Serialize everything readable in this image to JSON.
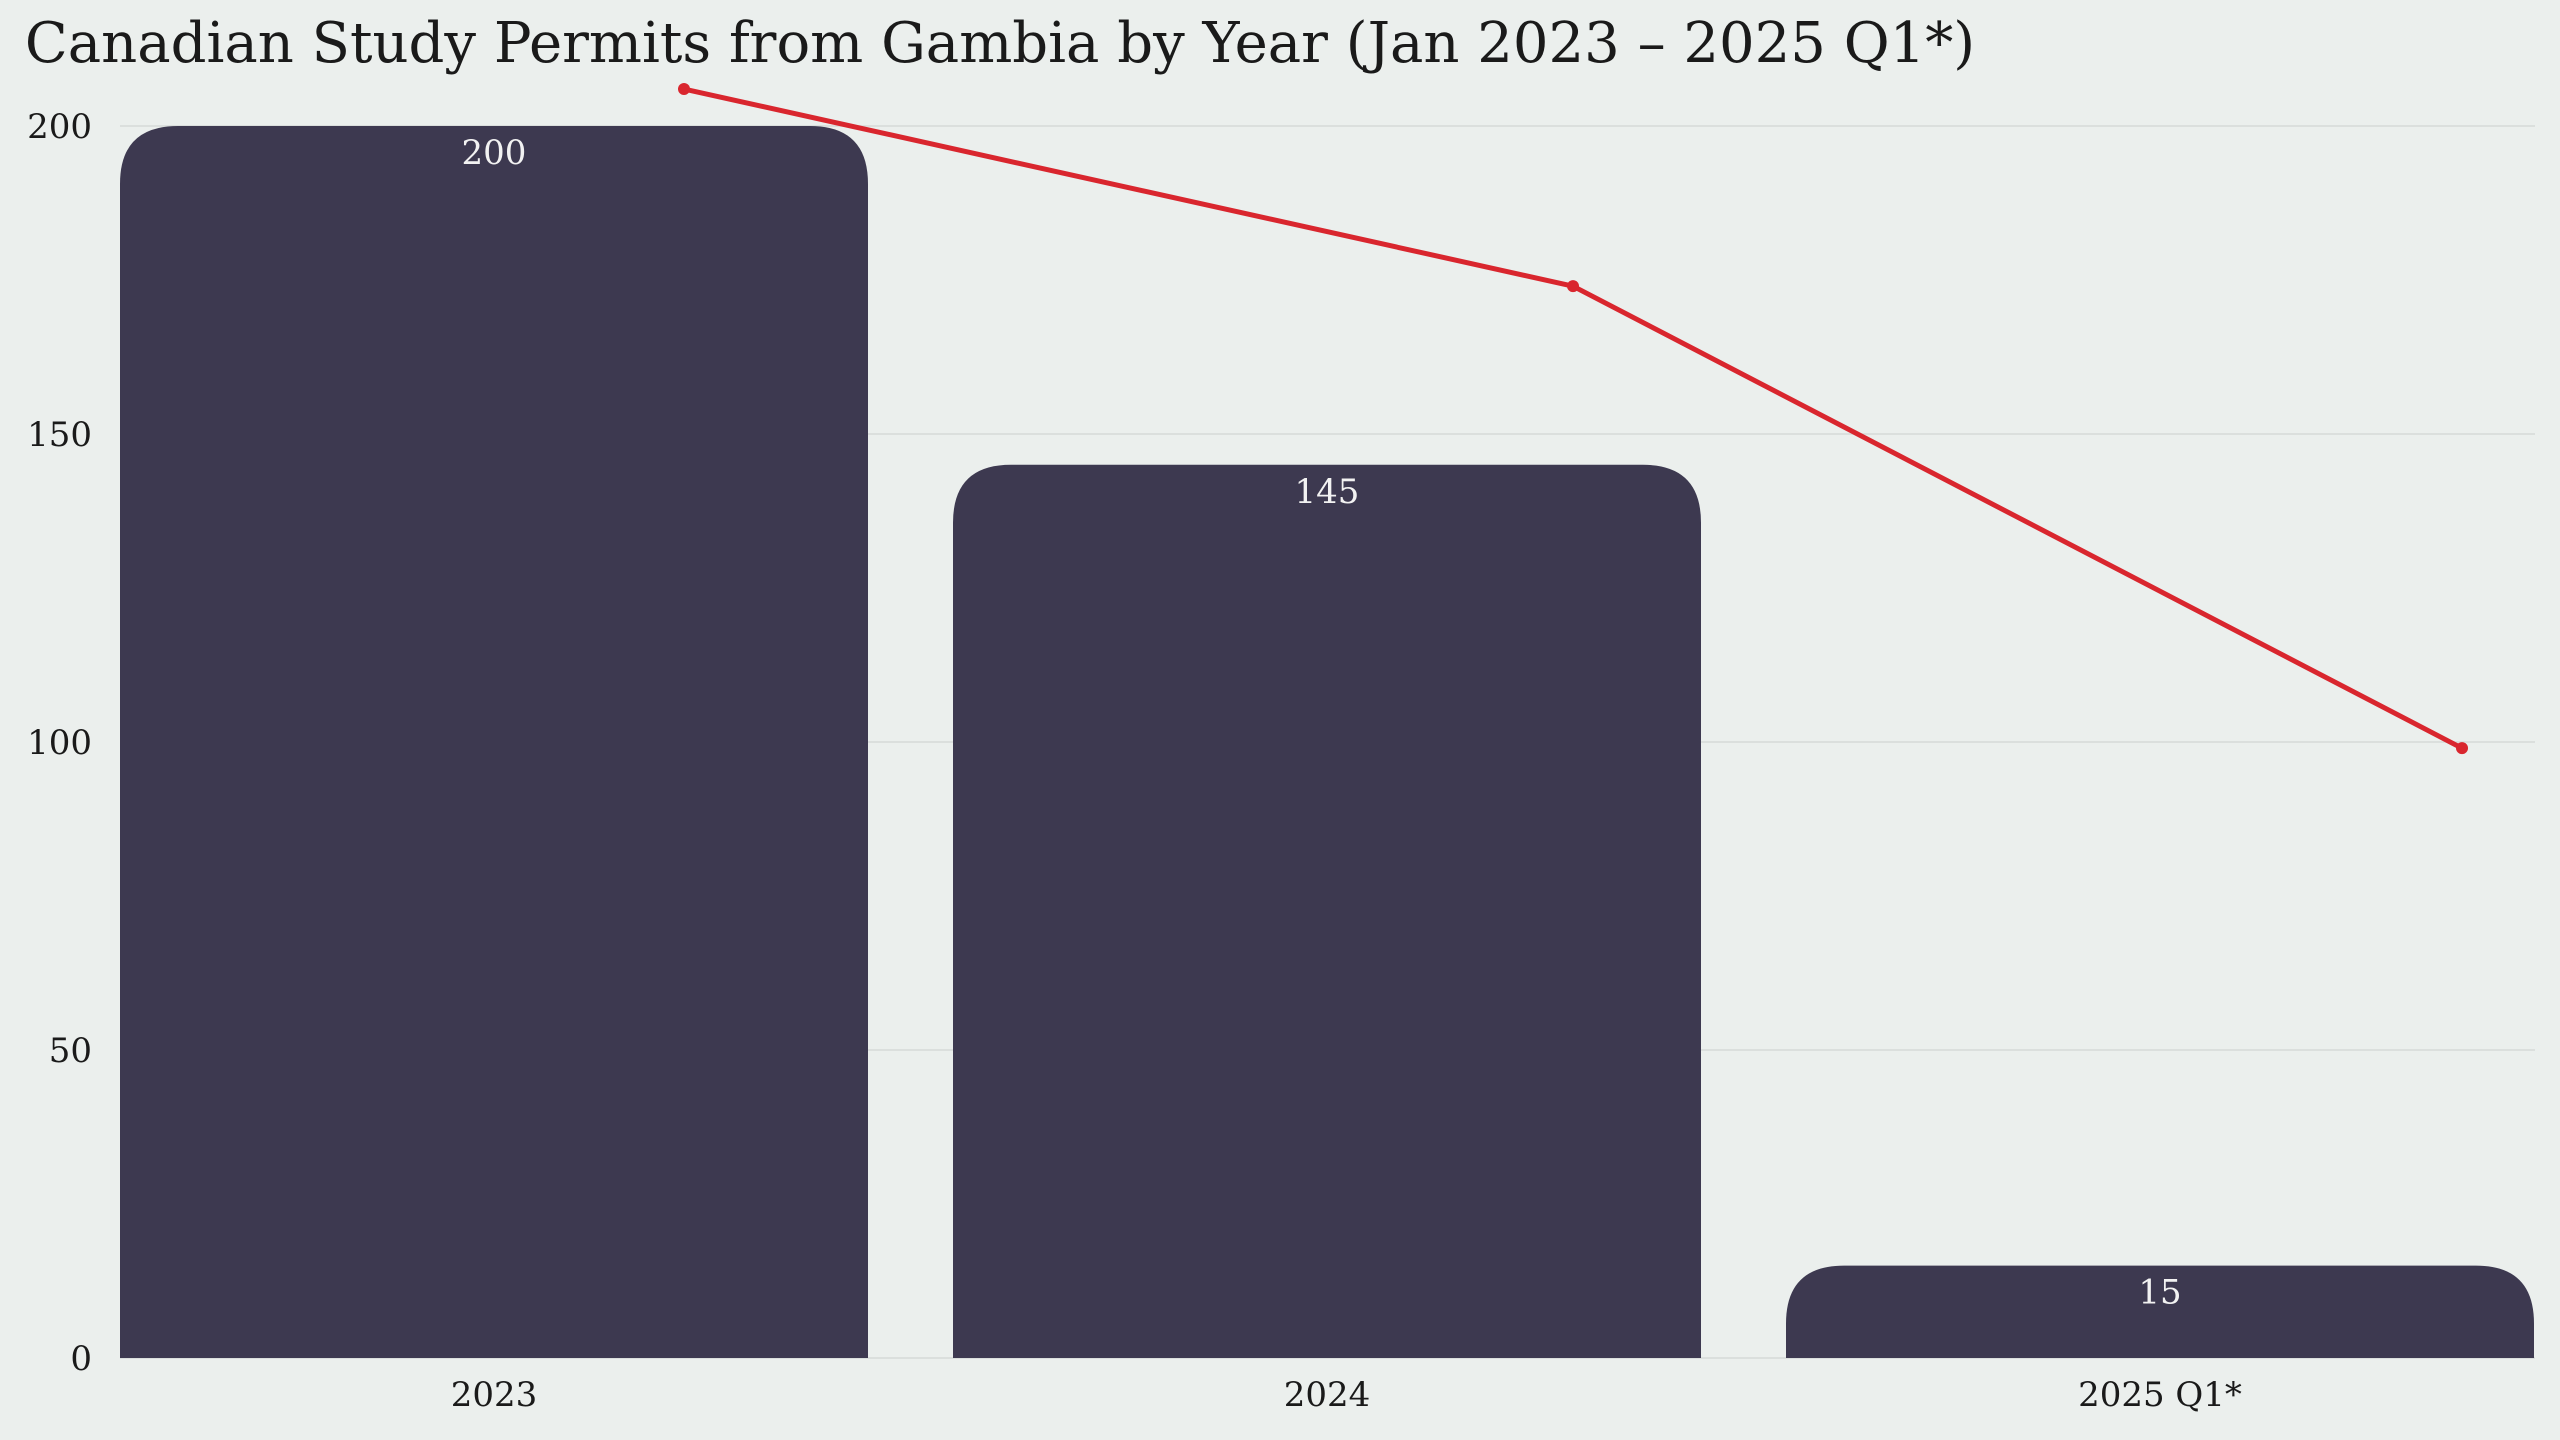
{
  "chart_data": {
    "type": "bar",
    "title": "Canadian Study Permits from Gambia by Year (Jan 2023 – 2025 Q1*)",
    "categories": [
      "2023",
      "2024",
      "2025 Q1*"
    ],
    "values": [
      200,
      145,
      15
    ],
    "value_labels": [
      "200",
      "145",
      "15"
    ],
    "trend_line_values": [
      206,
      174,
      99
    ],
    "ylim": [
      0,
      200
    ],
    "yticks": [
      0,
      50,
      100,
      150,
      200
    ],
    "ytick_labels": [
      "0",
      "50",
      "100",
      "150",
      "200"
    ],
    "grid": true,
    "colors": {
      "bar": "#3d3950",
      "trend_line": "#d9262e",
      "grid": "#d6dad8",
      "background": "#ebefed"
    }
  }
}
